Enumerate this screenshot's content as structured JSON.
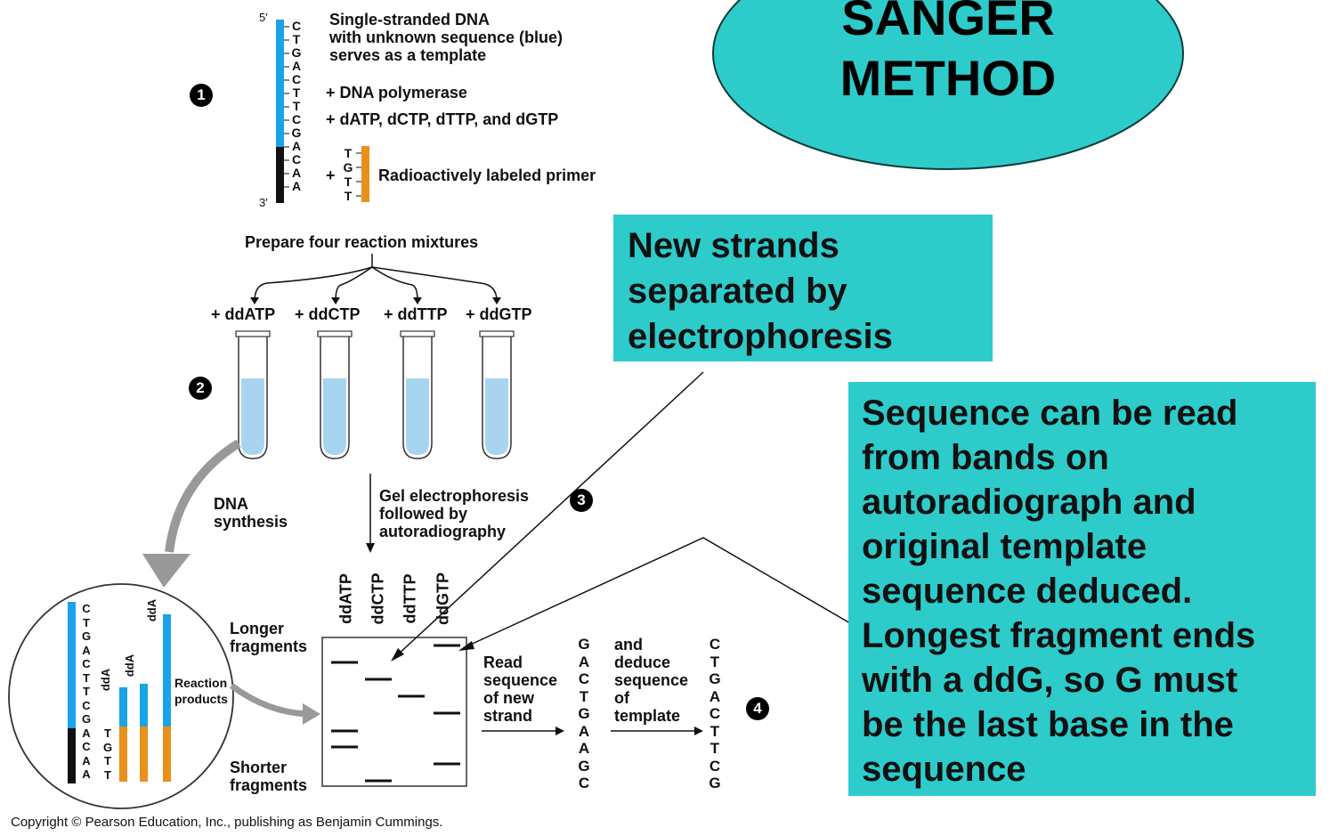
{
  "title": {
    "line1": "SANGER",
    "line2": "METHOD"
  },
  "step1": {
    "number": "1",
    "prime5": "5′",
    "prime3": "3′",
    "template_bases": [
      "C",
      "T",
      "G",
      "A",
      "C",
      "T",
      "T",
      "C",
      "G",
      "A",
      "C",
      "A",
      "A"
    ],
    "primer_bases": [
      "T",
      "G",
      "T",
      "T"
    ],
    "template_text": [
      "Single-stranded DNA",
      "with unknown sequence (blue)",
      "serves as a template"
    ],
    "polymerase": "+ DNA polymerase",
    "dntps": "+ dATP, dCTP, dTTP, and dGTP",
    "plus": "+",
    "primer_label": "Radioactively labeled primer"
  },
  "step2": {
    "number": "2",
    "prepare": "Prepare four reaction mixtures",
    "tubes": [
      "+ ddATP",
      "+ ddCTP",
      "+ ddTTP",
      "+ ddGTP"
    ],
    "dna_synthesis": [
      "DNA",
      "synthesis"
    ],
    "circle_template": [
      "C",
      "T",
      "G",
      "A",
      "C",
      "T",
      "T",
      "C",
      "G",
      "A",
      "C",
      "A",
      "A"
    ],
    "circle_primer": [
      "T",
      "G",
      "T",
      "T"
    ],
    "dd_labels": [
      "ddA",
      "ddA",
      "ddA"
    ],
    "reaction_products": [
      "Reaction",
      "products"
    ]
  },
  "step3": {
    "number": "3",
    "gel_text": [
      "Gel electrophoresis",
      "followed by",
      "autoradiography"
    ],
    "lanes": [
      "ddATP",
      "ddCTP",
      "ddTTP",
      "ddGTP"
    ],
    "longer": [
      "Longer",
      "fragments"
    ],
    "shorter": [
      "Shorter",
      "fragments"
    ]
  },
  "step4": {
    "number": "4",
    "read_text": [
      "Read",
      "sequence",
      "of new",
      "strand"
    ],
    "new_strand": [
      "G",
      "A",
      "C",
      "T",
      "G",
      "A",
      "A",
      "G",
      "C"
    ],
    "deduce_text": [
      "and",
      "deduce",
      "sequence",
      "of",
      "template"
    ],
    "template_seq": [
      "C",
      "T",
      "G",
      "A",
      "C",
      "T",
      "T",
      "C",
      "G"
    ]
  },
  "callouts": {
    "electrophoresis": [
      "New strands",
      "separated by",
      "electrophoresis"
    ],
    "sequence_read": [
      "Sequence can be read",
      "from bands on",
      "autoradiograph and",
      "original template",
      "sequence deduced.",
      "Longest fragment ends",
      "with a ddG, so G must",
      "be the last base in the",
      "sequence"
    ]
  },
  "copyright": "Copyright © Pearson Education, Inc., publishing as Benjamin Cummings.",
  "colors": {
    "template": "#1aa3e8",
    "primer": "#e8901a",
    "callout": "#2ecbcb",
    "tube_liquid": "#a9d4f0",
    "known": "#111111"
  }
}
